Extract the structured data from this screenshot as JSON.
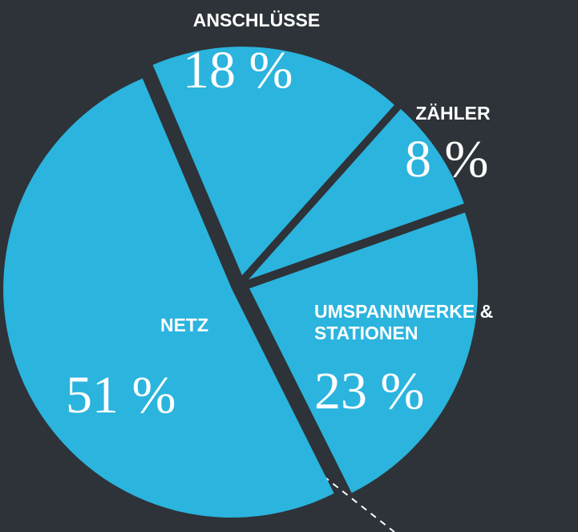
{
  "chart_data": {
    "type": "pie",
    "categories": [
      "ANSCHLÜSSE",
      "ZÄHLER",
      "UMSPANNWERKE & STATIONEN",
      "NETZ"
    ],
    "values": [
      18,
      8,
      23,
      51
    ],
    "value_labels": [
      "18 %",
      "8 %",
      "23 %",
      "51 %"
    ],
    "color": "#2bb4de"
  }
}
